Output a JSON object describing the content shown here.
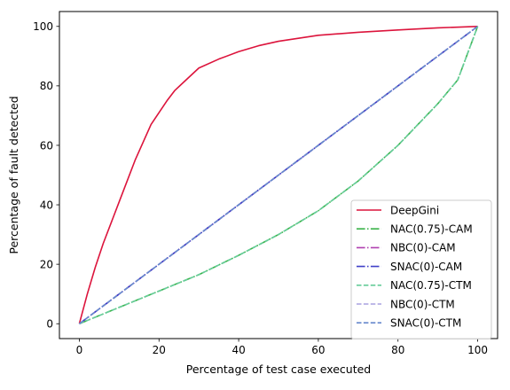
{
  "chart_data": {
    "type": "line",
    "xlabel": "Percentage of test case executed",
    "ylabel": "Percentage of fault detected",
    "xlim": [
      -5,
      105
    ],
    "ylim": [
      -5,
      105
    ],
    "xticks": [
      0,
      20,
      40,
      60,
      80,
      100
    ],
    "yticks": [
      0,
      20,
      40,
      60,
      80,
      100
    ],
    "grid": false,
    "legend_position": "lower-right",
    "series": [
      {
        "name": "DeepGini",
        "color": "#dc143c",
        "dash": "solid",
        "x": [
          0,
          2,
          4,
          6,
          8,
          10,
          12,
          14,
          16,
          18,
          20,
          22,
          24,
          26,
          28,
          30,
          35,
          40,
          45,
          50,
          55,
          60,
          70,
          80,
          90,
          100
        ],
        "y": [
          0,
          10,
          19,
          27,
          34,
          41,
          48,
          55,
          61,
          67,
          71,
          75,
          78.5,
          81,
          83.5,
          86,
          89,
          91.5,
          93.5,
          95,
          96,
          97,
          98,
          98.8,
          99.5,
          100
        ]
      },
      {
        "name": "NAC(0.75)-CAM",
        "color": "#3cb34a",
        "dash": "dashdot",
        "x": [
          0,
          10,
          20,
          30,
          40,
          50,
          60,
          70,
          80,
          90,
          95,
          100
        ],
        "y": [
          0,
          5.5,
          11,
          16.5,
          23,
          30,
          38,
          48,
          60,
          74,
          82,
          100
        ]
      },
      {
        "name": "NBC(0)-CAM",
        "color": "#b040b0",
        "dash": "dashdot",
        "x": [
          0,
          20,
          40,
          60,
          80,
          100
        ],
        "y": [
          0,
          20,
          40,
          60,
          80,
          100
        ]
      },
      {
        "name": "SNAC(0)-CAM",
        "color": "#4040c8",
        "dash": "dashdot",
        "x": [
          0,
          20,
          40,
          60,
          80,
          100
        ],
        "y": [
          0,
          20,
          40,
          60,
          80,
          100
        ]
      },
      {
        "name": "NAC(0.75)-CTM",
        "color": "#66cc99",
        "dash": "dashed",
        "x": [
          0,
          10,
          20,
          30,
          40,
          50,
          60,
          70,
          80,
          90,
          95,
          100
        ],
        "y": [
          0,
          5.5,
          11,
          16.5,
          23,
          30,
          38,
          48,
          60,
          74,
          82,
          100
        ]
      },
      {
        "name": "NBC(0)-CTM",
        "color": "#a8a0e0",
        "dash": "dashed",
        "x": [
          0,
          20,
          40,
          60,
          80,
          100
        ],
        "y": [
          0,
          20,
          40,
          60,
          80,
          100
        ]
      },
      {
        "name": "SNAC(0)-CTM",
        "color": "#6688cc",
        "dash": "dashed",
        "x": [
          0,
          20,
          40,
          60,
          80,
          100
        ],
        "y": [
          0,
          20,
          40,
          60,
          80,
          100
        ]
      }
    ]
  }
}
